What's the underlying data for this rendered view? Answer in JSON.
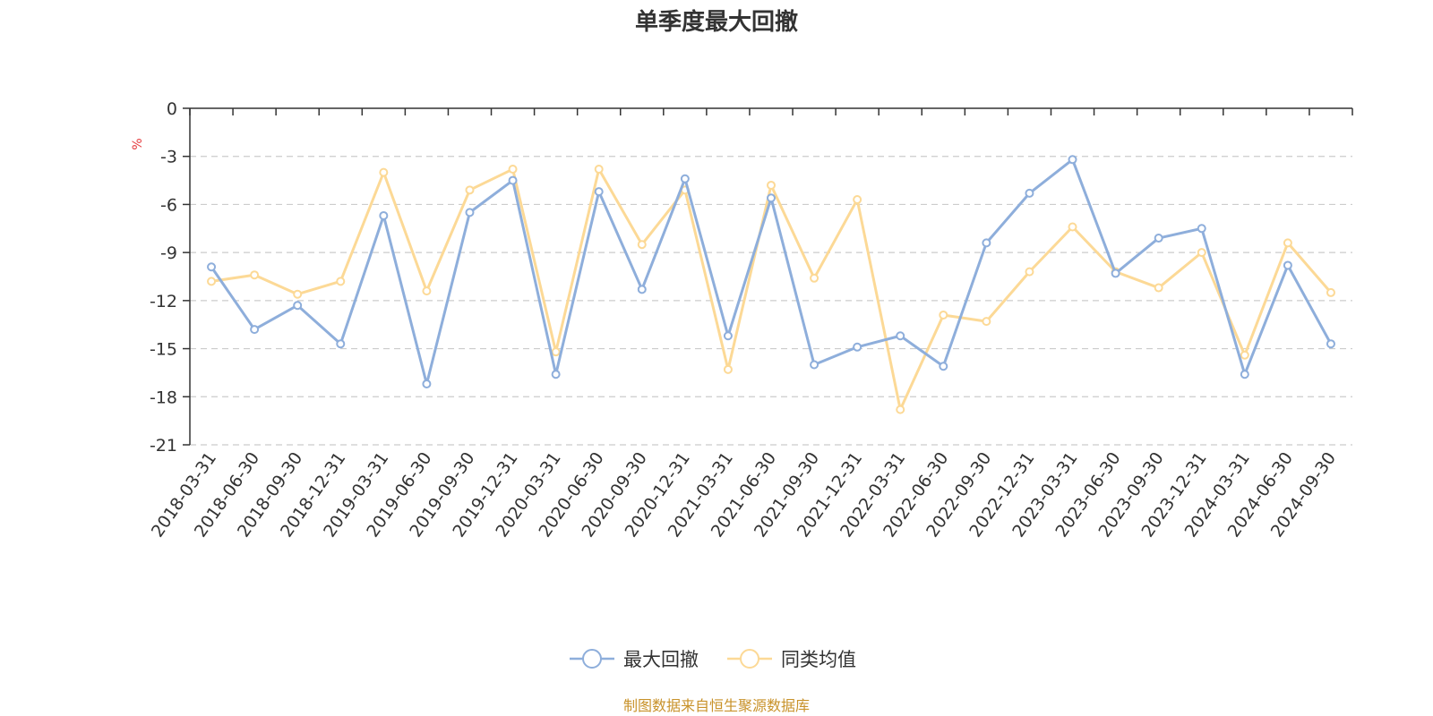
{
  "chart_data": {
    "type": "line",
    "title": "单季度最大回撤",
    "ylabel": "%",
    "ylim": [
      -21,
      0
    ],
    "yticks": [
      0,
      -3,
      -6,
      -9,
      -12,
      -15,
      -18,
      -21
    ],
    "grid": true,
    "legend_position": "bottom",
    "categories": [
      "2018-03-31",
      "2018-06-30",
      "2018-09-30",
      "2018-12-31",
      "2019-03-31",
      "2019-06-30",
      "2019-09-30",
      "2019-12-31",
      "2020-03-31",
      "2020-06-30",
      "2020-09-30",
      "2020-12-31",
      "2021-03-31",
      "2021-06-30",
      "2021-09-30",
      "2021-12-31",
      "2022-03-31",
      "2022-06-30",
      "2022-09-30",
      "2022-12-31",
      "2023-03-31",
      "2023-06-30",
      "2023-09-30",
      "2023-12-31",
      "2024-03-31",
      "2024-06-30",
      "2024-09-30"
    ],
    "series": [
      {
        "name": "最大回撤",
        "color": "#8eaedb",
        "values": [
          -9.9,
          -13.8,
          -12.3,
          -14.7,
          -6.7,
          -17.2,
          -6.5,
          -4.5,
          -16.6,
          -5.2,
          -11.3,
          -4.4,
          -14.2,
          -5.6,
          -16.0,
          -14.9,
          -14.2,
          -16.1,
          -8.4,
          -5.3,
          -3.2,
          -10.3,
          -8.1,
          -7.5,
          -16.6,
          -9.8,
          -14.7
        ]
      },
      {
        "name": "同类均值",
        "color": "#fcd996",
        "values": [
          -10.8,
          -10.4,
          -11.6,
          -10.8,
          -4.0,
          -11.4,
          -5.1,
          -3.8,
          -15.2,
          -3.8,
          -8.5,
          -5.1,
          -16.3,
          -4.8,
          -10.6,
          -5.7,
          -18.8,
          -12.9,
          -13.3,
          -10.2,
          -7.4,
          -10.2,
          -11.2,
          -9.0,
          -15.4,
          -8.4,
          -11.5
        ]
      }
    ]
  },
  "footer": {
    "source": "制图数据来自恒生聚源数据库"
  }
}
